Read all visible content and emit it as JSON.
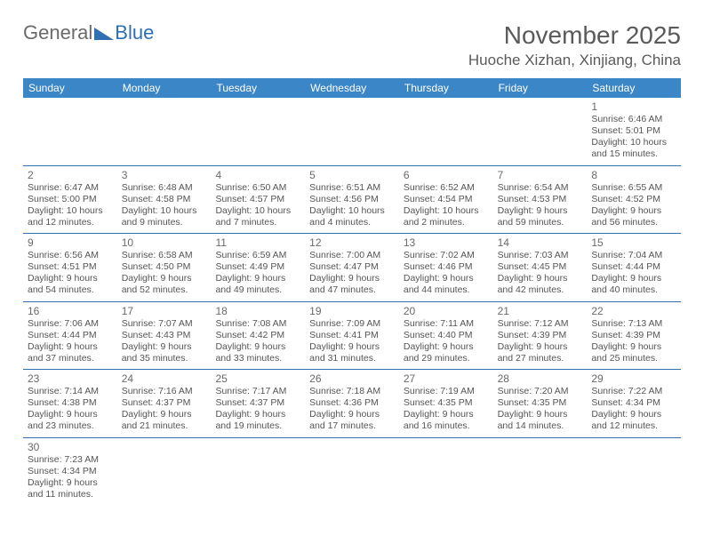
{
  "logo": {
    "general": "General",
    "blue": "Blue"
  },
  "title": "November 2025",
  "location": "Huoche Xizhan, Xinjiang, China",
  "colors": {
    "header_bg": "#3b86c6",
    "divider": "#2f6fb3",
    "text": "#555555"
  },
  "weekdays": [
    "Sunday",
    "Monday",
    "Tuesday",
    "Wednesday",
    "Thursday",
    "Friday",
    "Saturday"
  ],
  "weeks": [
    [
      null,
      null,
      null,
      null,
      null,
      null,
      {
        "n": "1",
        "sunrise": "Sunrise: 6:46 AM",
        "sunset": "Sunset: 5:01 PM",
        "d1": "Daylight: 10 hours",
        "d2": "and 15 minutes."
      }
    ],
    [
      {
        "n": "2",
        "sunrise": "Sunrise: 6:47 AM",
        "sunset": "Sunset: 5:00 PM",
        "d1": "Daylight: 10 hours",
        "d2": "and 12 minutes."
      },
      {
        "n": "3",
        "sunrise": "Sunrise: 6:48 AM",
        "sunset": "Sunset: 4:58 PM",
        "d1": "Daylight: 10 hours",
        "d2": "and 9 minutes."
      },
      {
        "n": "4",
        "sunrise": "Sunrise: 6:50 AM",
        "sunset": "Sunset: 4:57 PM",
        "d1": "Daylight: 10 hours",
        "d2": "and 7 minutes."
      },
      {
        "n": "5",
        "sunrise": "Sunrise: 6:51 AM",
        "sunset": "Sunset: 4:56 PM",
        "d1": "Daylight: 10 hours",
        "d2": "and 4 minutes."
      },
      {
        "n": "6",
        "sunrise": "Sunrise: 6:52 AM",
        "sunset": "Sunset: 4:54 PM",
        "d1": "Daylight: 10 hours",
        "d2": "and 2 minutes."
      },
      {
        "n": "7",
        "sunrise": "Sunrise: 6:54 AM",
        "sunset": "Sunset: 4:53 PM",
        "d1": "Daylight: 9 hours",
        "d2": "and 59 minutes."
      },
      {
        "n": "8",
        "sunrise": "Sunrise: 6:55 AM",
        "sunset": "Sunset: 4:52 PM",
        "d1": "Daylight: 9 hours",
        "d2": "and 56 minutes."
      }
    ],
    [
      {
        "n": "9",
        "sunrise": "Sunrise: 6:56 AM",
        "sunset": "Sunset: 4:51 PM",
        "d1": "Daylight: 9 hours",
        "d2": "and 54 minutes."
      },
      {
        "n": "10",
        "sunrise": "Sunrise: 6:58 AM",
        "sunset": "Sunset: 4:50 PM",
        "d1": "Daylight: 9 hours",
        "d2": "and 52 minutes."
      },
      {
        "n": "11",
        "sunrise": "Sunrise: 6:59 AM",
        "sunset": "Sunset: 4:49 PM",
        "d1": "Daylight: 9 hours",
        "d2": "and 49 minutes."
      },
      {
        "n": "12",
        "sunrise": "Sunrise: 7:00 AM",
        "sunset": "Sunset: 4:47 PM",
        "d1": "Daylight: 9 hours",
        "d2": "and 47 minutes."
      },
      {
        "n": "13",
        "sunrise": "Sunrise: 7:02 AM",
        "sunset": "Sunset: 4:46 PM",
        "d1": "Daylight: 9 hours",
        "d2": "and 44 minutes."
      },
      {
        "n": "14",
        "sunrise": "Sunrise: 7:03 AM",
        "sunset": "Sunset: 4:45 PM",
        "d1": "Daylight: 9 hours",
        "d2": "and 42 minutes."
      },
      {
        "n": "15",
        "sunrise": "Sunrise: 7:04 AM",
        "sunset": "Sunset: 4:44 PM",
        "d1": "Daylight: 9 hours",
        "d2": "and 40 minutes."
      }
    ],
    [
      {
        "n": "16",
        "sunrise": "Sunrise: 7:06 AM",
        "sunset": "Sunset: 4:44 PM",
        "d1": "Daylight: 9 hours",
        "d2": "and 37 minutes."
      },
      {
        "n": "17",
        "sunrise": "Sunrise: 7:07 AM",
        "sunset": "Sunset: 4:43 PM",
        "d1": "Daylight: 9 hours",
        "d2": "and 35 minutes."
      },
      {
        "n": "18",
        "sunrise": "Sunrise: 7:08 AM",
        "sunset": "Sunset: 4:42 PM",
        "d1": "Daylight: 9 hours",
        "d2": "and 33 minutes."
      },
      {
        "n": "19",
        "sunrise": "Sunrise: 7:09 AM",
        "sunset": "Sunset: 4:41 PM",
        "d1": "Daylight: 9 hours",
        "d2": "and 31 minutes."
      },
      {
        "n": "20",
        "sunrise": "Sunrise: 7:11 AM",
        "sunset": "Sunset: 4:40 PM",
        "d1": "Daylight: 9 hours",
        "d2": "and 29 minutes."
      },
      {
        "n": "21",
        "sunrise": "Sunrise: 7:12 AM",
        "sunset": "Sunset: 4:39 PM",
        "d1": "Daylight: 9 hours",
        "d2": "and 27 minutes."
      },
      {
        "n": "22",
        "sunrise": "Sunrise: 7:13 AM",
        "sunset": "Sunset: 4:39 PM",
        "d1": "Daylight: 9 hours",
        "d2": "and 25 minutes."
      }
    ],
    [
      {
        "n": "23",
        "sunrise": "Sunrise: 7:14 AM",
        "sunset": "Sunset: 4:38 PM",
        "d1": "Daylight: 9 hours",
        "d2": "and 23 minutes."
      },
      {
        "n": "24",
        "sunrise": "Sunrise: 7:16 AM",
        "sunset": "Sunset: 4:37 PM",
        "d1": "Daylight: 9 hours",
        "d2": "and 21 minutes."
      },
      {
        "n": "25",
        "sunrise": "Sunrise: 7:17 AM",
        "sunset": "Sunset: 4:37 PM",
        "d1": "Daylight: 9 hours",
        "d2": "and 19 minutes."
      },
      {
        "n": "26",
        "sunrise": "Sunrise: 7:18 AM",
        "sunset": "Sunset: 4:36 PM",
        "d1": "Daylight: 9 hours",
        "d2": "and 17 minutes."
      },
      {
        "n": "27",
        "sunrise": "Sunrise: 7:19 AM",
        "sunset": "Sunset: 4:35 PM",
        "d1": "Daylight: 9 hours",
        "d2": "and 16 minutes."
      },
      {
        "n": "28",
        "sunrise": "Sunrise: 7:20 AM",
        "sunset": "Sunset: 4:35 PM",
        "d1": "Daylight: 9 hours",
        "d2": "and 14 minutes."
      },
      {
        "n": "29",
        "sunrise": "Sunrise: 7:22 AM",
        "sunset": "Sunset: 4:34 PM",
        "d1": "Daylight: 9 hours",
        "d2": "and 12 minutes."
      }
    ],
    [
      {
        "n": "30",
        "sunrise": "Sunrise: 7:23 AM",
        "sunset": "Sunset: 4:34 PM",
        "d1": "Daylight: 9 hours",
        "d2": "and 11 minutes."
      },
      null,
      null,
      null,
      null,
      null,
      null
    ]
  ]
}
